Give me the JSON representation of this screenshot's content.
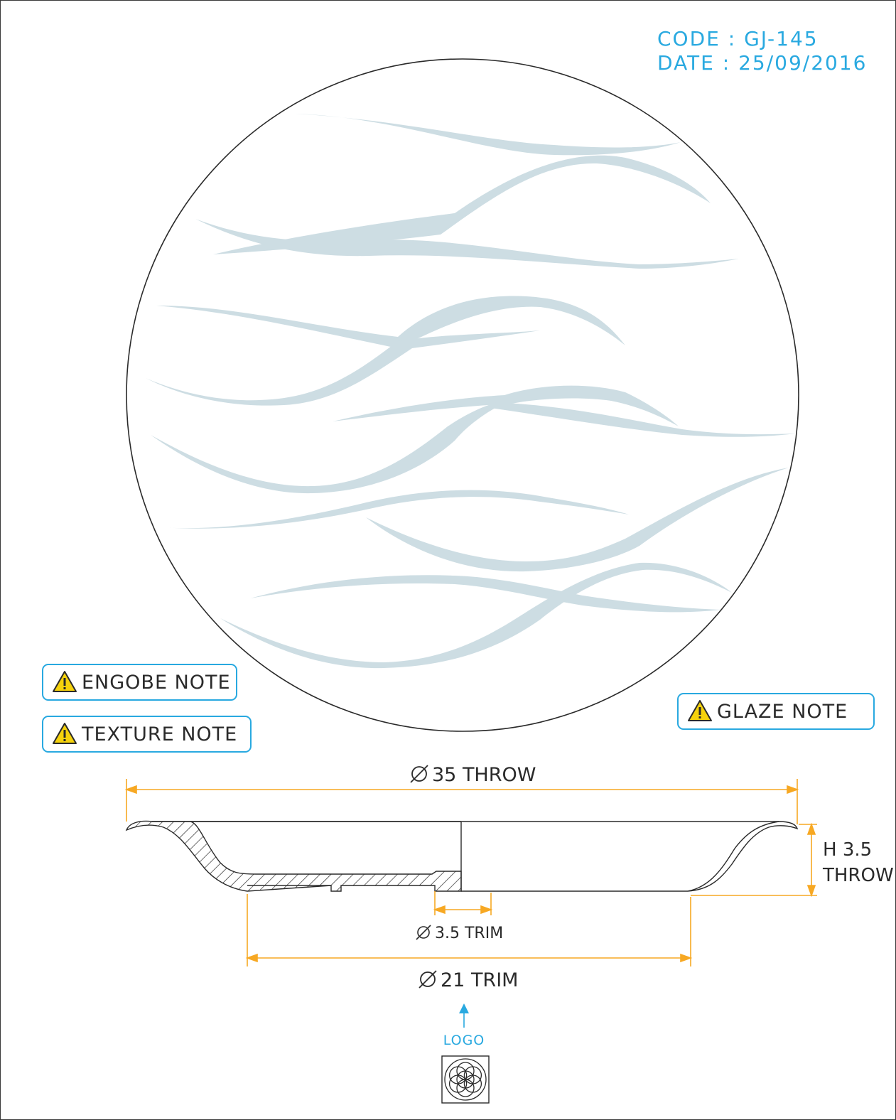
{
  "header": {
    "code": "CODE : GJ-145",
    "date": "DATE : 25/09/2016"
  },
  "notes": {
    "engobe": "ENGOBE NOTE",
    "texture": "TEXTURE NOTE",
    "glaze": "GLAZE NOTE"
  },
  "dimensions": {
    "throw_diameter": "35 THROW",
    "height_line1": "H 3.5",
    "height_line2": "THROW",
    "foot_ring": "3.5 TRIM",
    "base_diameter": "21 TRIM"
  },
  "logo": {
    "label": "LOGO"
  },
  "colors": {
    "accent": "#29a9e0",
    "dimension": "#f7a823",
    "wave": "#cddde3",
    "line": "#2a2a2a",
    "warning": "#f5d20c"
  },
  "icons": [
    "warning-icon",
    "diameter-symbol",
    "arrow-up-icon",
    "flower-of-life-logo"
  ]
}
